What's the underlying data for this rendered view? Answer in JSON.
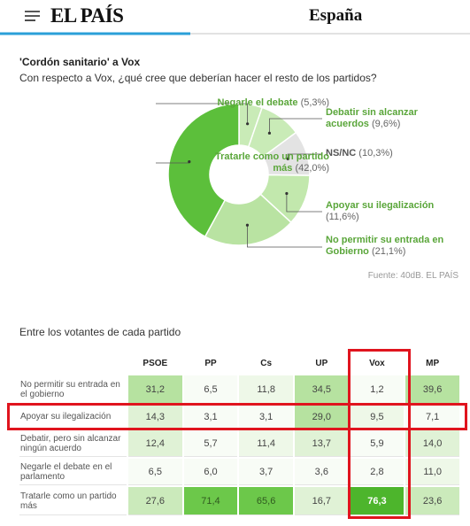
{
  "header": {
    "logo": "EL PAÍS",
    "section": "España"
  },
  "chart_data": {
    "type": "donut",
    "title": "'Cordón sanitario' a Vox",
    "subtitle": "Con respecto a Vox, ¿qué cree que deberían hacer el resto de los partidos?",
    "categories": [
      "Negarle el debate",
      "Debatir sin alcanzar acuerdos",
      "NS/NC",
      "Apoyar su ilegalización",
      "No permitir su entrada en Gobierno",
      "Tratarle como un partido más"
    ],
    "values": [
      5.3,
      9.6,
      10.3,
      11.6,
      21.1,
      42.0
    ],
    "value_labels": [
      "(5,3%)",
      "(9,6%)",
      "(10,3%)",
      "(11,6%)",
      "(21,1%)",
      "(42,0%)"
    ],
    "colors": [
      "#c9ebb7",
      "#c9ebb7",
      "#e3e3e3",
      "#c2e8ad",
      "#b9e3a2",
      "#5cbf3b"
    ],
    "label_colors": [
      "#5aa63a",
      "#5aa63a",
      "#555555",
      "#5aa63a",
      "#5aa63a",
      "#5aa63a"
    ],
    "source": "Fuente: 40dB. EL PAÍS"
  },
  "table": {
    "title": "Entre los votantes de cada partido",
    "columns": [
      "PSOE",
      "PP",
      "Cs",
      "UP",
      "Vox",
      "MP"
    ],
    "rows": [
      [
        "No permitir su entrada en el gobierno",
        "31,2",
        "6,5",
        "11,8",
        "34,5",
        "1,2",
        "39,6"
      ],
      [
        "Apoyar su ilegalización",
        "14,3",
        "3,1",
        "3,1",
        "29,0",
        "9,5",
        "7,1"
      ],
      [
        "Debatir, pero sin alcanzar ningún acuerdo",
        "12,4",
        "5,7",
        "11,4",
        "13,7",
        "5,9",
        "14,0"
      ],
      [
        "Negarle el debate en el parlamento",
        "6,5",
        "6,0",
        "3,7",
        "3,6",
        "2,8",
        "11,0"
      ],
      [
        "Tratarle como un partido más",
        "27,6",
        "71,4",
        "65,6",
        "16,7",
        "76,3",
        "23,6"
      ]
    ]
  }
}
